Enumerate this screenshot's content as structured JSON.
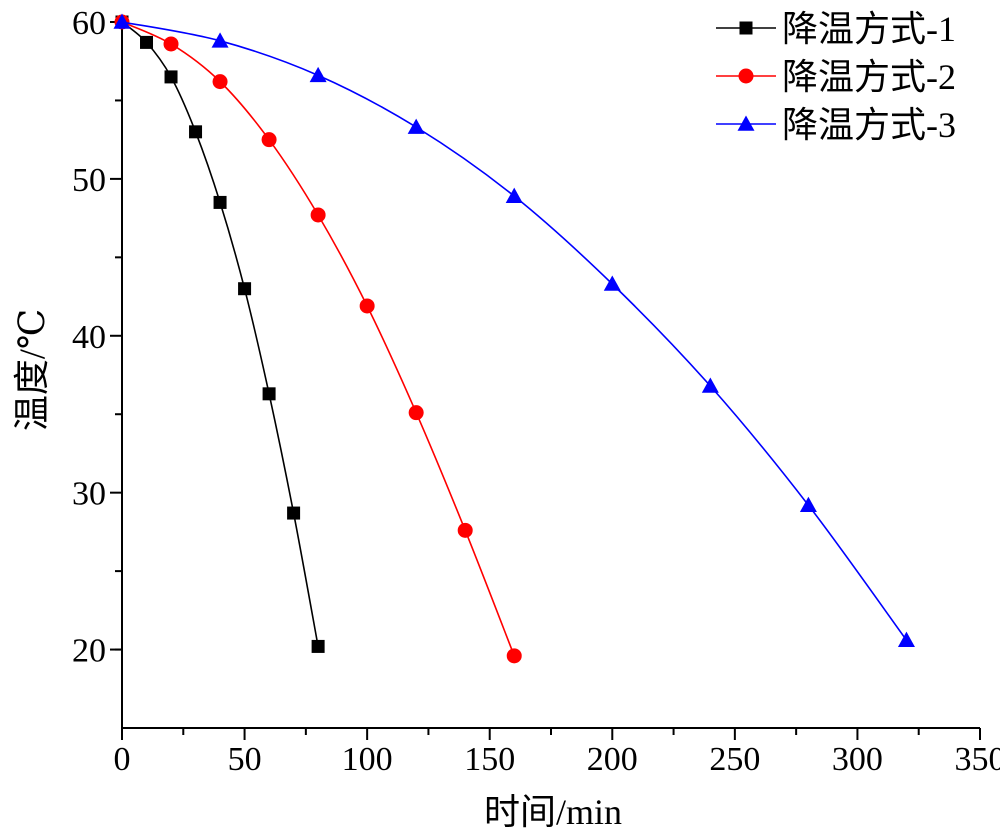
{
  "chart_data": {
    "type": "line",
    "xlabel": "时间/min",
    "ylabel": "温度/℃",
    "xlim": [
      0,
      350
    ],
    "ylim": [
      15,
      60
    ],
    "xticks": [
      0,
      50,
      100,
      150,
      200,
      250,
      300,
      350
    ],
    "yticks": [
      20,
      30,
      40,
      50,
      60
    ],
    "grid": false,
    "legend_position": "top-right",
    "series": [
      {
        "name": "降温方式-1",
        "color": "#000000",
        "marker": "square",
        "x": [
          0,
          10,
          20,
          30,
          40,
          50,
          60,
          70,
          80
        ],
        "y": [
          60.0,
          58.7,
          56.5,
          53.0,
          48.5,
          43.0,
          36.3,
          28.7,
          20.2
        ]
      },
      {
        "name": "降温方式-2",
        "color": "#ff0000",
        "marker": "circle",
        "x": [
          0,
          20,
          40,
          60,
          80,
          100,
          120,
          140,
          160
        ],
        "y": [
          60.0,
          58.6,
          56.2,
          52.5,
          47.7,
          41.9,
          35.1,
          27.6,
          19.6
        ]
      },
      {
        "name": "降温方式-3",
        "color": "#0000ff",
        "marker": "triangle",
        "x": [
          0,
          40,
          80,
          120,
          160,
          200,
          240,
          280,
          320
        ],
        "y": [
          60.0,
          58.8,
          56.6,
          53.3,
          48.9,
          43.3,
          36.8,
          29.2,
          20.6
        ]
      }
    ]
  }
}
